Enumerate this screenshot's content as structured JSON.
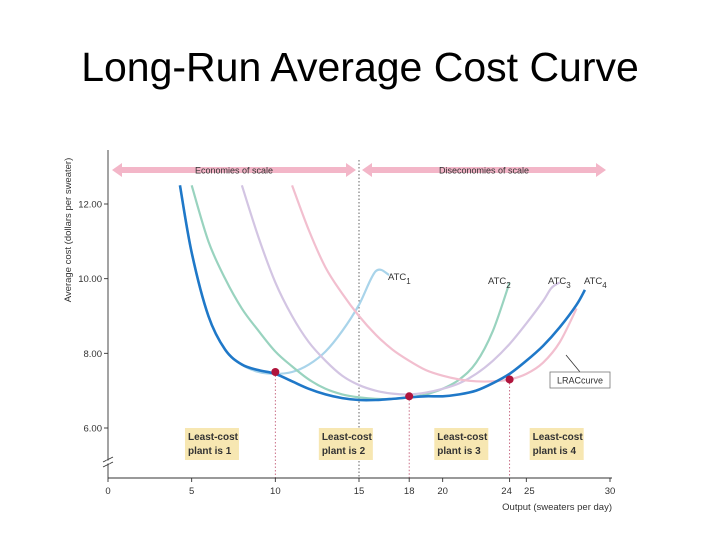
{
  "slide": {
    "title": "Long-Run Average Cost Curve"
  },
  "chart_data": {
    "type": "line",
    "title": "",
    "xlabel": "Output (sweaters per day)",
    "ylabel": "Average cost (dollars per sweater)",
    "xlim": [
      0,
      30
    ],
    "ylim": [
      5.0,
      13.5
    ],
    "grid": false,
    "x_ticks": [
      {
        "v": 0,
        "label": "0"
      },
      {
        "v": 5,
        "label": "5"
      },
      {
        "v": 10,
        "label": "10"
      },
      {
        "v": 15,
        "label": "15"
      },
      {
        "v": 18,
        "label": "18"
      },
      {
        "v": 20,
        "label": "20"
      },
      {
        "v": 24,
        "label": "24"
      },
      {
        "v": 25,
        "label": "25"
      },
      {
        "v": 30,
        "label": "30"
      }
    ],
    "y_ticks": [
      {
        "v": 6,
        "label": "6.00"
      },
      {
        "v": 8,
        "label": "8.00"
      },
      {
        "v": 10,
        "label": "10.00"
      },
      {
        "v": 12,
        "label": "12.00"
      }
    ],
    "scale_bands": [
      {
        "label": "Economies of scale",
        "from": 0,
        "to": 15
      },
      {
        "label": "Diseconomies of scale",
        "from": 15,
        "to": 30
      }
    ],
    "series": [
      {
        "name": "ATC",
        "subscript": "1",
        "color": "#a9d4ea",
        "x": [
          4.3,
          5,
          6,
          7,
          8,
          9,
          10,
          11,
          12,
          13,
          14,
          15,
          16,
          16.8
        ],
        "y": [
          12.5,
          10.7,
          9.0,
          8.1,
          7.7,
          7.5,
          7.45,
          7.5,
          7.7,
          8.05,
          8.6,
          9.3,
          10.2,
          10.1
        ]
      },
      {
        "name": "ATC",
        "subscript": "2",
        "color": "#99d3bf",
        "x": [
          5,
          6,
          7,
          8,
          9,
          10,
          11,
          12,
          13,
          14,
          15,
          16,
          17,
          18,
          19,
          20,
          21,
          22,
          23,
          24
        ],
        "y": [
          12.5,
          11.0,
          10.0,
          9.2,
          8.6,
          8.05,
          7.65,
          7.3,
          7.05,
          6.9,
          6.82,
          6.78,
          6.78,
          6.82,
          6.9,
          7.05,
          7.3,
          7.75,
          8.6,
          9.9
        ]
      },
      {
        "name": "ATC",
        "subscript": "3",
        "color": "#d3c5e3",
        "x": [
          8,
          9,
          10,
          11,
          12,
          13,
          14,
          15,
          16,
          17,
          18,
          19,
          20,
          21,
          22,
          23,
          24,
          25,
          26,
          26.5,
          27
        ],
        "y": [
          12.5,
          11.1,
          9.9,
          9.0,
          8.3,
          7.8,
          7.4,
          7.15,
          7.0,
          6.92,
          6.9,
          6.95,
          7.05,
          7.2,
          7.45,
          7.8,
          8.25,
          8.8,
          9.4,
          9.75,
          9.9
        ]
      },
      {
        "name": "ATC",
        "subscript": "4",
        "color": "#f2bfcf",
        "x": [
          11,
          12,
          13,
          14,
          15,
          16,
          17,
          18,
          19,
          20,
          21,
          22,
          23,
          24,
          25,
          26,
          27,
          28
        ],
        "y": [
          12.5,
          11.3,
          10.3,
          9.6,
          9.0,
          8.5,
          8.1,
          7.8,
          7.55,
          7.4,
          7.3,
          7.25,
          7.25,
          7.3,
          7.45,
          7.75,
          8.3,
          9.2
        ]
      },
      {
        "name": "",
        "color": "#1f78c8",
        "x": [
          4.3,
          5,
          6,
          7,
          8,
          9,
          10,
          11,
          12,
          13,
          14,
          15,
          16,
          17,
          18,
          19,
          20,
          21,
          22,
          23,
          24,
          25,
          26,
          27,
          28,
          28.5
        ],
        "y": [
          12.5,
          10.7,
          9.0,
          8.1,
          7.7,
          7.55,
          7.45,
          7.25,
          7.05,
          6.9,
          6.8,
          6.75,
          6.75,
          6.78,
          6.82,
          6.85,
          6.85,
          6.9,
          7.0,
          7.2,
          7.45,
          7.8,
          8.2,
          8.7,
          9.3,
          9.7
        ]
      }
    ],
    "points": [
      {
        "x": 10,
        "y": 7.5
      },
      {
        "x": 18,
        "y": 6.85
      },
      {
        "x": 24,
        "y": 7.3
      }
    ],
    "reference_lines": [
      {
        "x": 10,
        "style": "dotted-red"
      },
      {
        "x": 15,
        "style": "dotted-gray"
      },
      {
        "x": 18,
        "style": "dotted-red"
      },
      {
        "x": 24,
        "style": "dotted-red"
      }
    ],
    "lrac_label": "LRACcurve",
    "least_cost_boxes": [
      {
        "label_line1": "Least-cost",
        "label_line2": "plant is 1",
        "x": 4.6
      },
      {
        "label_line1": "Least-cost",
        "label_line2": "plant is 2",
        "x": 12.6
      },
      {
        "label_line1": "Least-cost",
        "label_line2": "plant is 3",
        "x": 19.5
      },
      {
        "label_line1": "Least-cost",
        "label_line2": "plant is 4",
        "x": 25.2
      }
    ],
    "box_color": "#f7e7b2"
  }
}
